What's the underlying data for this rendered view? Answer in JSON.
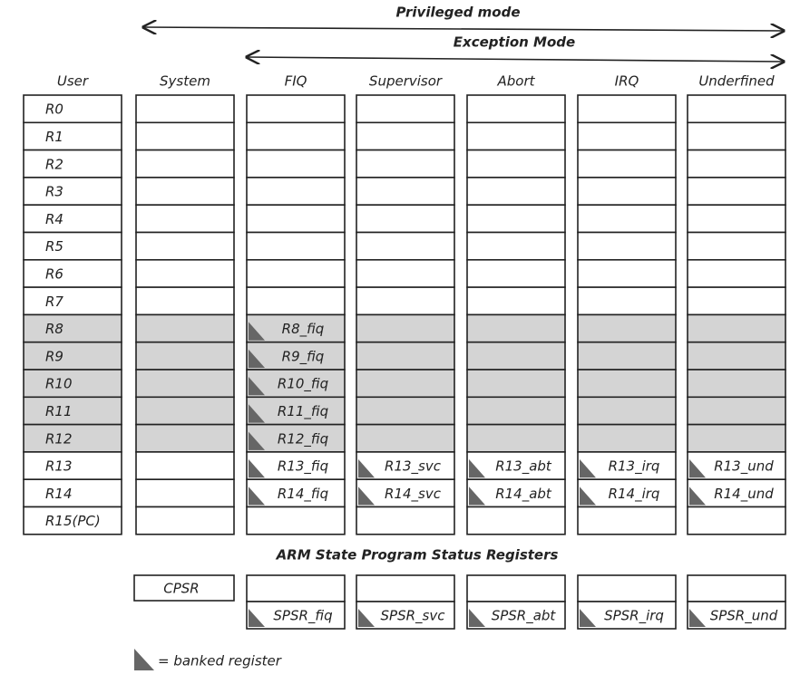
{
  "privileged_label": "Privileged mode",
  "exception_label": "Exception Mode",
  "columns": [
    {
      "header": "User",
      "registers": [
        "R0",
        "R1",
        "R2",
        "R3",
        "R4",
        "R5",
        "R6",
        "R7",
        "R8",
        "R9",
        "R10",
        "R11",
        "R12",
        "R13",
        "R14",
        "R15(PC)"
      ]
    },
    {
      "header": "System"
    },
    {
      "header": "FIQ",
      "banked": [
        "R8_fiq",
        "R9_fiq",
        "R10_fiq",
        "R11_fiq",
        "R12_fiq",
        "R13_fiq",
        "R14_fiq"
      ],
      "spsr": "SPSR_fiq"
    },
    {
      "header": "Supervisor",
      "banked": [
        "R13_svc",
        "R14_svc"
      ],
      "spsr": "SPSR_svc"
    },
    {
      "header": "Abort",
      "banked": [
        "R13_abt",
        "R14_abt"
      ],
      "spsr": "SPSR_abt"
    },
    {
      "header": "IRQ",
      "banked": [
        "R13_irq",
        "R14_irq"
      ],
      "spsr": "SPSR_irq"
    },
    {
      "header": "Underfined",
      "banked": [
        "R13_und",
        "R14_und"
      ],
      "spsr": "SPSR_und"
    }
  ],
  "psr_title": "ARM State Program Status Registers",
  "cpsr": "CPSR",
  "legend": "= banked register"
}
